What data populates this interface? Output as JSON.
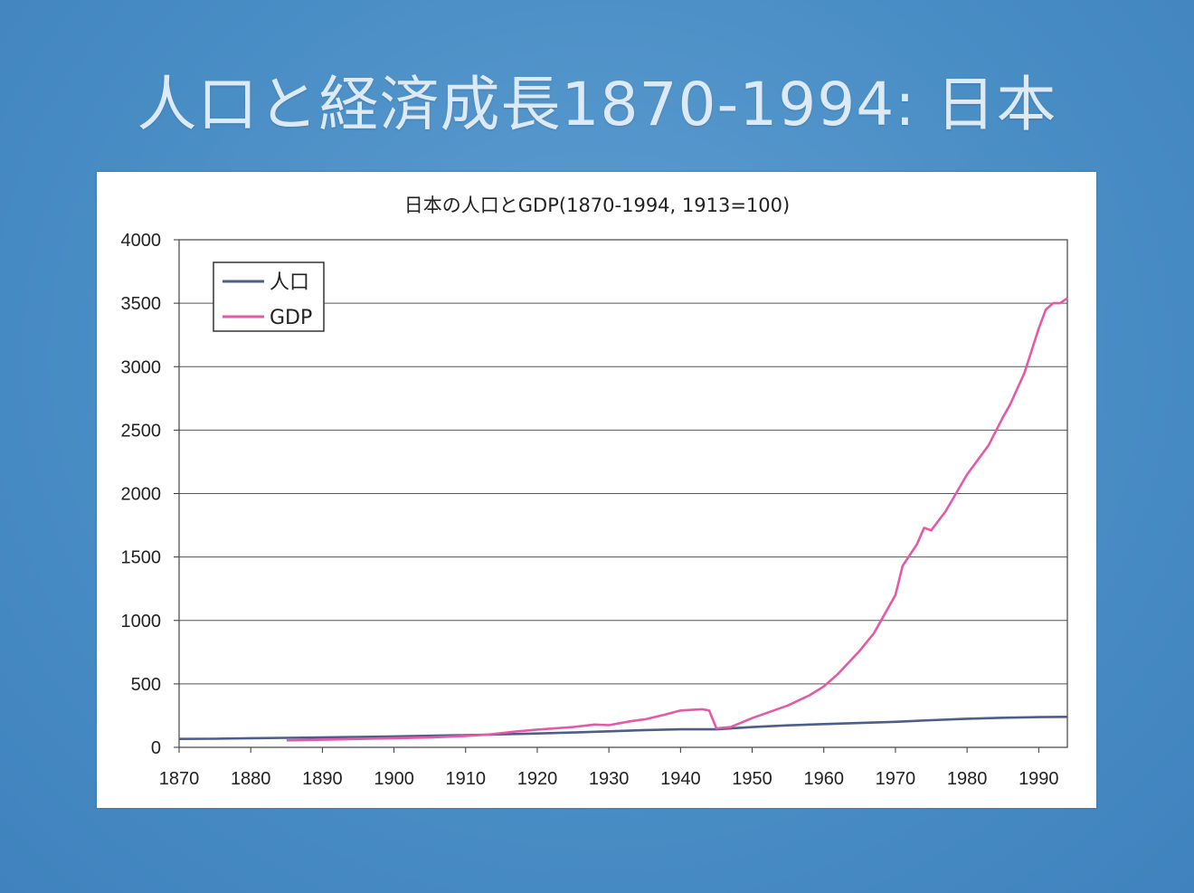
{
  "slide": {
    "title": "人口と経済成長1870-1994: 日本"
  },
  "chart_data": {
    "type": "line",
    "title": "日本の人口とGDP(1870-1994, 1913=100)",
    "xlabel": "",
    "ylabel": "",
    "xlim": [
      1870,
      1994
    ],
    "ylim": [
      0,
      4000
    ],
    "xticks": [
      1870,
      1880,
      1890,
      1900,
      1910,
      1920,
      1930,
      1940,
      1950,
      1960,
      1970,
      1980,
      1990
    ],
    "yticks": [
      0,
      500,
      1000,
      1500,
      2000,
      2500,
      3000,
      3500,
      4000
    ],
    "grid": "horizontal",
    "legend": "top-left",
    "series": [
      {
        "name": "人口",
        "color": "#4f5d8a",
        "points": [
          [
            1870,
            66
          ],
          [
            1875,
            68
          ],
          [
            1880,
            72
          ],
          [
            1885,
            75
          ],
          [
            1890,
            78
          ],
          [
            1895,
            82
          ],
          [
            1900,
            86
          ],
          [
            1905,
            91
          ],
          [
            1910,
            96
          ],
          [
            1913,
            100
          ],
          [
            1920,
            109
          ],
          [
            1925,
            117
          ],
          [
            1930,
            126
          ],
          [
            1935,
            136
          ],
          [
            1940,
            142
          ],
          [
            1945,
            142
          ],
          [
            1950,
            160
          ],
          [
            1955,
            173
          ],
          [
            1960,
            183
          ],
          [
            1965,
            192
          ],
          [
            1970,
            201
          ],
          [
            1975,
            214
          ],
          [
            1980,
            225
          ],
          [
            1985,
            233
          ],
          [
            1990,
            238
          ],
          [
            1994,
            240
          ]
        ]
      },
      {
        "name": "GDP",
        "color": "#e45aa6",
        "points": [
          [
            1885,
            55
          ],
          [
            1890,
            60
          ],
          [
            1895,
            66
          ],
          [
            1900,
            72
          ],
          [
            1905,
            78
          ],
          [
            1910,
            90
          ],
          [
            1913,
            100
          ],
          [
            1917,
            125
          ],
          [
            1920,
            140
          ],
          [
            1925,
            160
          ],
          [
            1928,
            180
          ],
          [
            1930,
            175
          ],
          [
            1933,
            205
          ],
          [
            1935,
            220
          ],
          [
            1938,
            260
          ],
          [
            1940,
            290
          ],
          [
            1943,
            300
          ],
          [
            1944,
            290
          ],
          [
            1945,
            150
          ],
          [
            1947,
            160
          ],
          [
            1950,
            230
          ],
          [
            1953,
            290
          ],
          [
            1955,
            330
          ],
          [
            1958,
            410
          ],
          [
            1960,
            480
          ],
          [
            1962,
            580
          ],
          [
            1965,
            760
          ],
          [
            1967,
            900
          ],
          [
            1970,
            1200
          ],
          [
            1971,
            1430
          ],
          [
            1973,
            1600
          ],
          [
            1974,
            1730
          ],
          [
            1975,
            1710
          ],
          [
            1977,
            1860
          ],
          [
            1980,
            2150
          ],
          [
            1983,
            2380
          ],
          [
            1985,
            2600
          ],
          [
            1986,
            2700
          ],
          [
            1988,
            2950
          ],
          [
            1990,
            3300
          ],
          [
            1991,
            3450
          ],
          [
            1992,
            3500
          ],
          [
            1993,
            3500
          ],
          [
            1994,
            3540
          ]
        ]
      }
    ]
  }
}
